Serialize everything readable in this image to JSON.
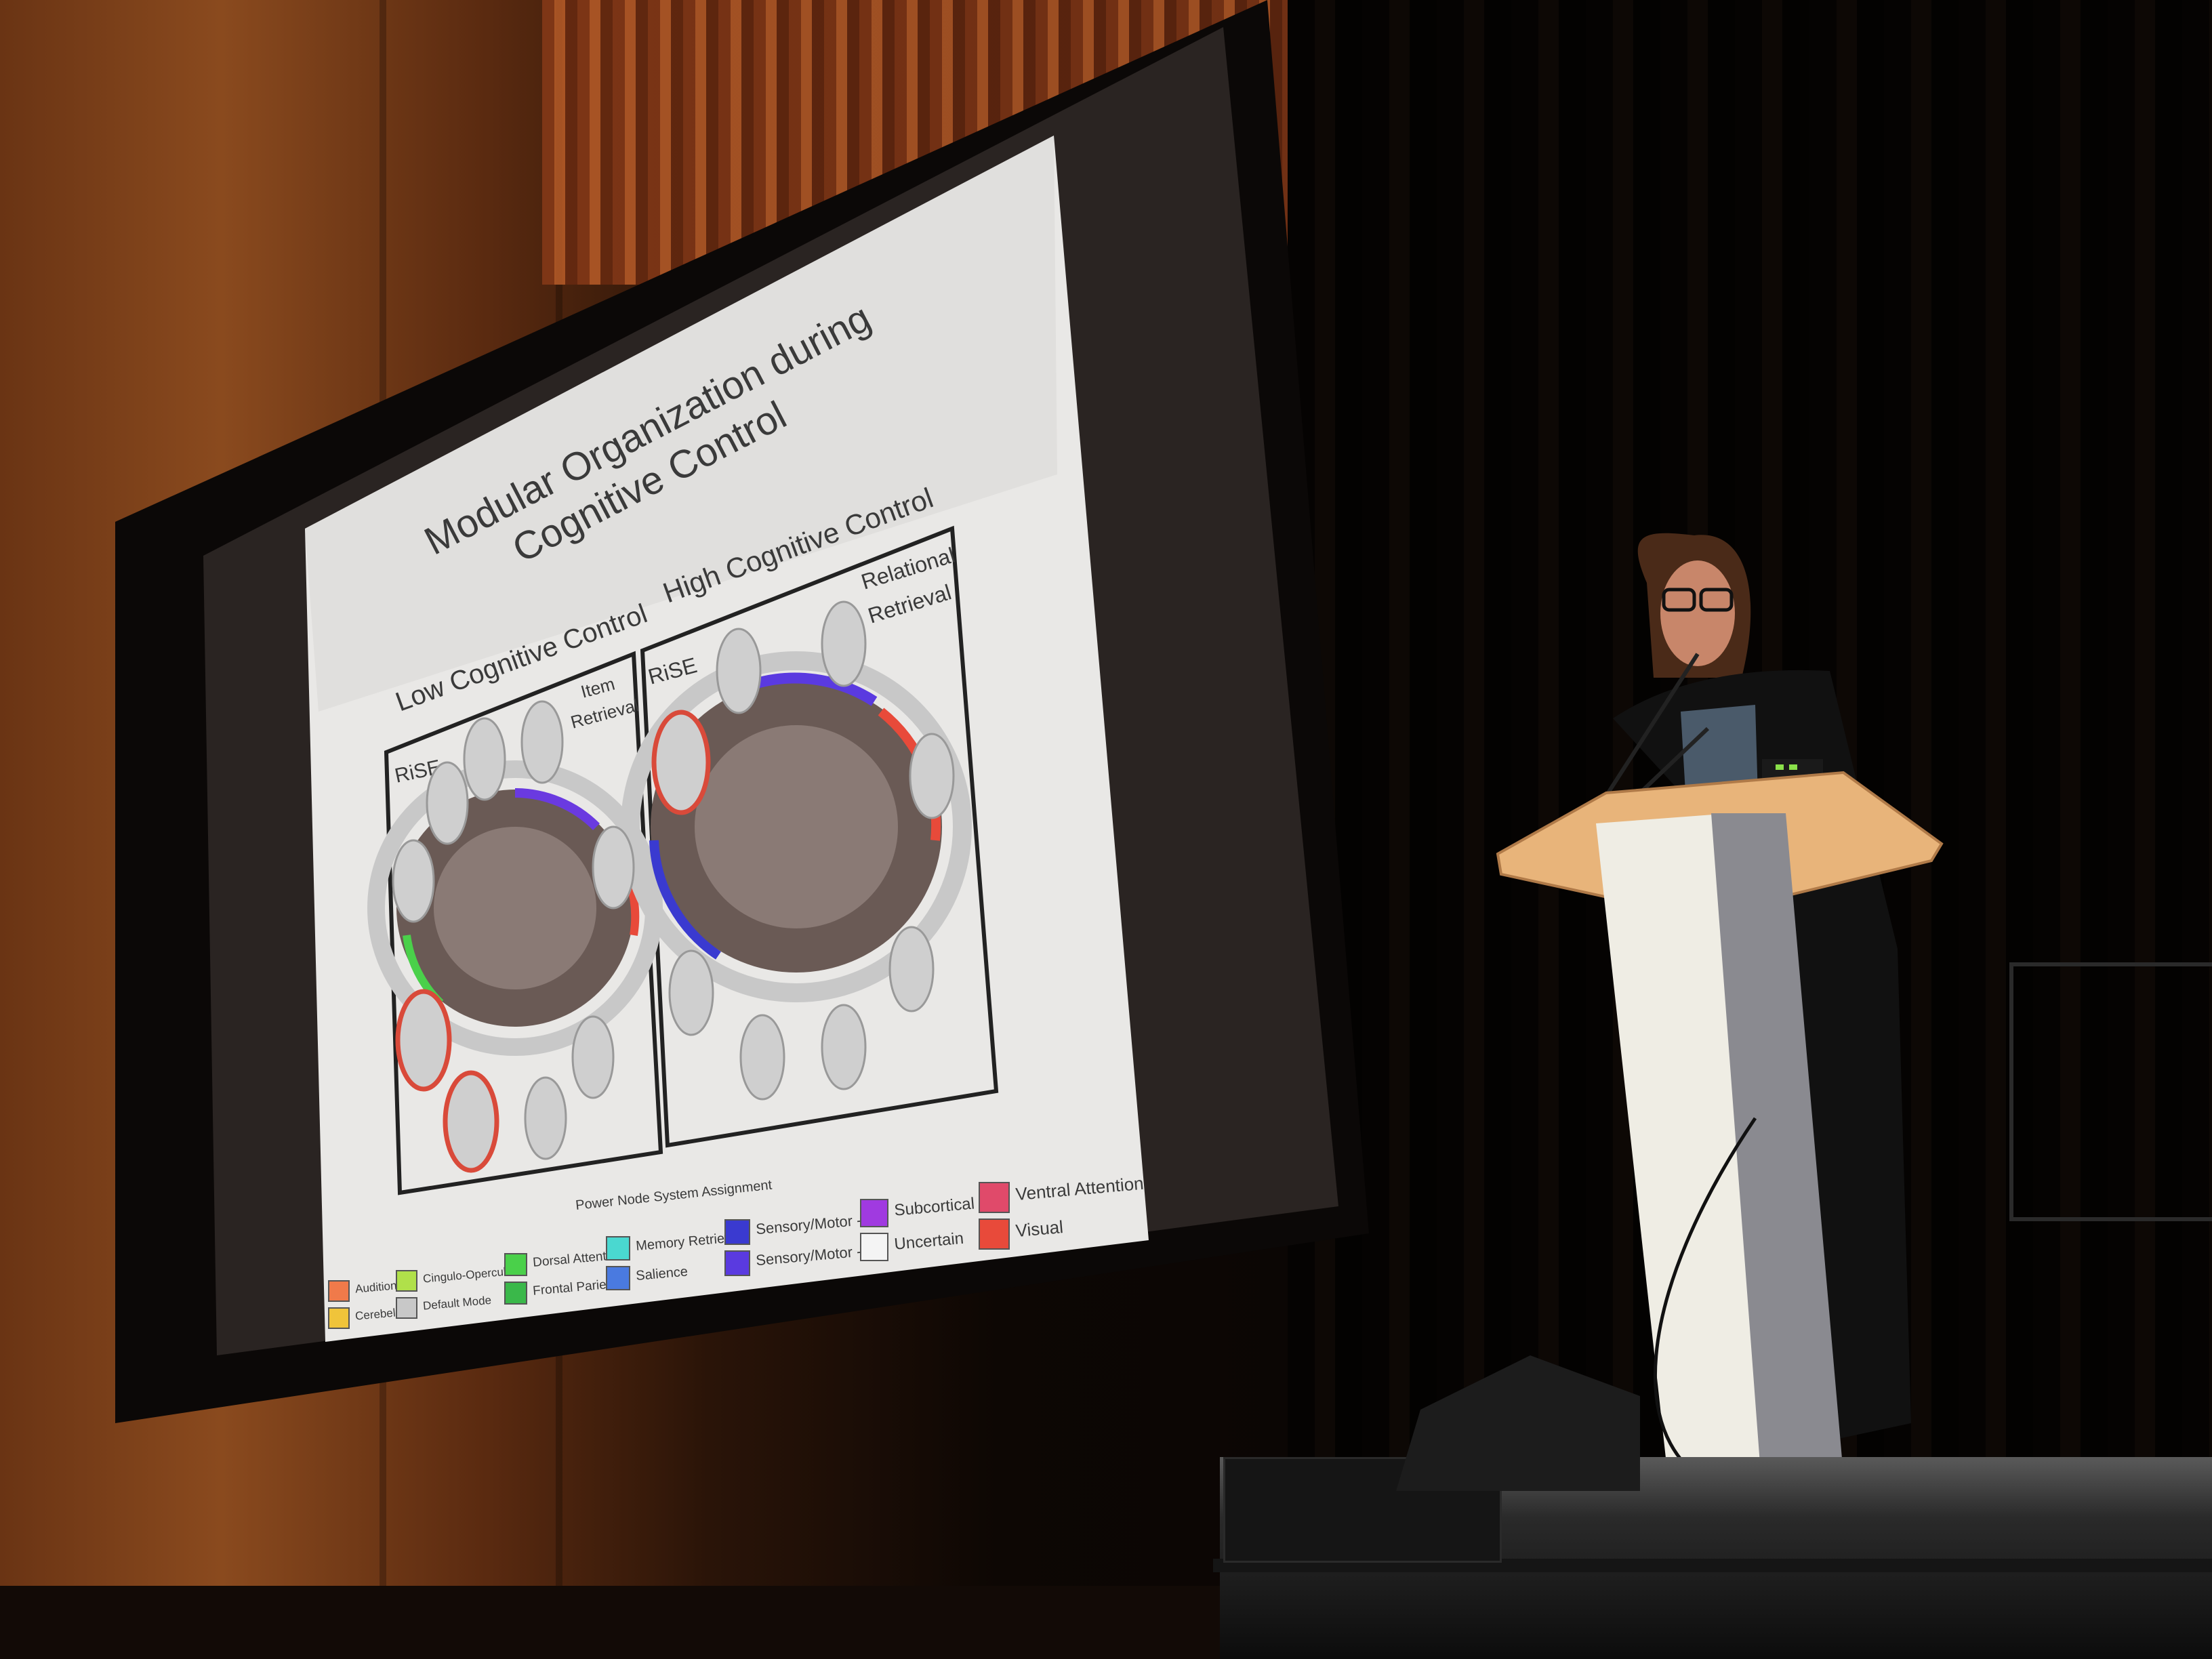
{
  "slide": {
    "title_line1": "Modular Organization during",
    "title_line2": "Cognitive Control",
    "left_heading": "Low Cognitive Control",
    "right_heading": "High Cognitive Control",
    "left_panel_label": "RiSE",
    "left_panel_tag_line1": "Item",
    "left_panel_tag_line2": "Retrieval",
    "right_panel_label": "RiSE",
    "right_panel_tag_line1": "Relational",
    "right_panel_tag_line2": "Retrieval",
    "legend_title": "Power Node System Assignment",
    "legend_items": [
      {
        "label": "Audition",
        "color": "#f07a4a"
      },
      {
        "label": "Cerebellar",
        "color": "#f0c43a"
      },
      {
        "label": "Cingulo-Opercular",
        "color": "#b0e04a"
      },
      {
        "label": "Default Mode",
        "color": "#c8c8c8"
      },
      {
        "label": "Dorsal Attention",
        "color": "#4ad04a"
      },
      {
        "label": "Frontal Parietal",
        "color": "#3ab84a"
      },
      {
        "label": "Memory Retrieval",
        "color": "#4ad8d0"
      },
      {
        "label": "Salience",
        "color": "#4a7ae0"
      },
      {
        "label": "Sensory/Motor -H",
        "color": "#3a3ad0"
      },
      {
        "label": "Sensory/Motor -M",
        "color": "#5a3ae0"
      },
      {
        "label": "Subcortical",
        "color": "#a03ae0"
      },
      {
        "label": "Uncertain",
        "color": "#f4f4f4"
      },
      {
        "label": "Ventral Attention",
        "color": "#e04a6a"
      },
      {
        "label": "Visual",
        "color": "#e84a3a"
      }
    ]
  },
  "colors": {
    "slide_background": "#eeeeee",
    "highlight_ring": "#d94a3a",
    "podium_top": "#e8b47a",
    "podium_column": "#f0efe8"
  }
}
